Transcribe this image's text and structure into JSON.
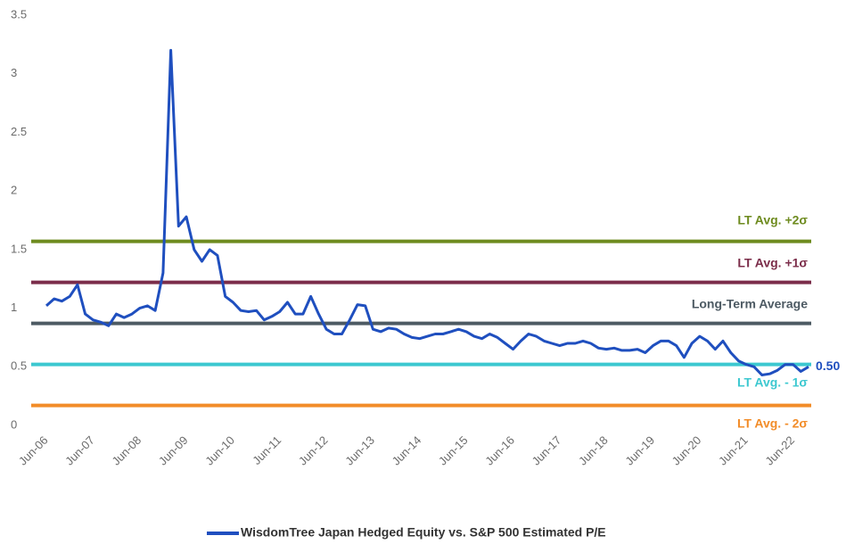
{
  "chart_data": {
    "type": "line",
    "x": [
      "Jun-06",
      "Aug-06",
      "Oct-06",
      "Dec-06",
      "Feb-07",
      "Apr-07",
      "Jun-07",
      "Aug-07",
      "Oct-07",
      "Dec-07",
      "Feb-08",
      "Apr-08",
      "Jun-08",
      "Aug-08",
      "Oct-08",
      "Dec-08",
      "Feb-09",
      "Apr-09",
      "Jun-09",
      "Aug-09",
      "Oct-09",
      "Dec-09",
      "Feb-10",
      "Apr-10",
      "Jun-10",
      "Aug-10",
      "Oct-10",
      "Dec-10",
      "Feb-11",
      "Apr-11",
      "Jun-11",
      "Aug-11",
      "Oct-11",
      "Dec-11",
      "Feb-12",
      "Apr-12",
      "Jun-12",
      "Aug-12",
      "Oct-12",
      "Dec-12",
      "Feb-13",
      "Apr-13",
      "Jun-13",
      "Aug-13",
      "Oct-13",
      "Dec-13",
      "Feb-14",
      "Apr-14",
      "Jun-14",
      "Aug-14",
      "Oct-14",
      "Dec-14",
      "Feb-15",
      "Apr-15",
      "Jun-15",
      "Aug-15",
      "Oct-15",
      "Dec-15",
      "Feb-16",
      "Apr-16",
      "Jun-16",
      "Aug-16",
      "Oct-16",
      "Dec-16",
      "Feb-17",
      "Apr-17",
      "Jun-17",
      "Aug-17",
      "Oct-17",
      "Dec-17",
      "Feb-18",
      "Apr-18",
      "Jun-18",
      "Aug-18",
      "Oct-18",
      "Dec-18",
      "Feb-19",
      "Apr-19",
      "Jun-19",
      "Aug-19",
      "Oct-19",
      "Dec-19",
      "Feb-20",
      "Apr-20",
      "Jun-20",
      "Aug-20",
      "Oct-20",
      "Dec-20",
      "Feb-21",
      "Apr-21",
      "Jun-21",
      "Aug-21",
      "Oct-21",
      "Dec-21",
      "Feb-22",
      "Apr-22",
      "Jun-22",
      "Aug-22",
      "Oct-22"
    ],
    "xticks": [
      "Jun-06",
      "Jun-07",
      "Jun-08",
      "Jun-09",
      "Jun-10",
      "Jun-11",
      "Jun-12",
      "Jun-13",
      "Jun-14",
      "Jun-15",
      "Jun-16",
      "Jun-17",
      "Jun-18",
      "Jun-19",
      "Jun-20",
      "Jun-21",
      "Jun-22"
    ],
    "series": [
      {
        "name": "WisdomTree Japan Hedged Equity vs. S&P 500 Estimated P/E",
        "color": "#1f4fbf",
        "values": [
          1.02,
          1.08,
          1.06,
          1.1,
          1.2,
          0.95,
          0.9,
          0.88,
          0.85,
          0.95,
          0.92,
          0.95,
          1.0,
          1.02,
          0.98,
          1.3,
          3.2,
          1.7,
          1.78,
          1.5,
          1.4,
          1.5,
          1.45,
          1.1,
          1.05,
          0.98,
          0.97,
          0.98,
          0.9,
          0.93,
          0.97,
          1.05,
          0.95,
          0.95,
          1.1,
          0.95,
          0.82,
          0.78,
          0.78,
          0.9,
          1.03,
          1.02,
          0.82,
          0.8,
          0.83,
          0.82,
          0.78,
          0.75,
          0.74,
          0.76,
          0.78,
          0.78,
          0.8,
          0.82,
          0.8,
          0.76,
          0.74,
          0.78,
          0.75,
          0.7,
          0.65,
          0.72,
          0.78,
          0.76,
          0.72,
          0.7,
          0.68,
          0.7,
          0.7,
          0.72,
          0.7,
          0.66,
          0.65,
          0.66,
          0.64,
          0.64,
          0.65,
          0.62,
          0.68,
          0.72,
          0.72,
          0.68,
          0.58,
          0.7,
          0.76,
          0.72,
          0.65,
          0.72,
          0.62,
          0.55,
          0.52,
          0.5,
          0.43,
          0.44,
          0.47,
          0.52,
          0.52,
          0.46,
          0.5
        ],
        "end_label": "0.50"
      }
    ],
    "reference_lines": [
      {
        "name": "LT Avg. +2σ",
        "value": 1.57,
        "color": "#6e8b1f"
      },
      {
        "name": "LT Avg. +1σ",
        "value": 1.22,
        "color": "#7b2d4a"
      },
      {
        "name": "Long-Term Average",
        "value": 0.87,
        "color": "#4d5a63"
      },
      {
        "name": "LT Avg. - 1σ",
        "value": 0.52,
        "color": "#3cc8d0"
      },
      {
        "name": "LT Avg. - 2σ",
        "value": 0.17,
        "color": "#f28c28"
      }
    ],
    "ylim": [
      0,
      3.5
    ],
    "yticks": [
      0,
      0.5,
      1,
      1.5,
      2,
      2.5,
      3,
      3.5
    ],
    "grid": false,
    "legend": "bottom"
  }
}
